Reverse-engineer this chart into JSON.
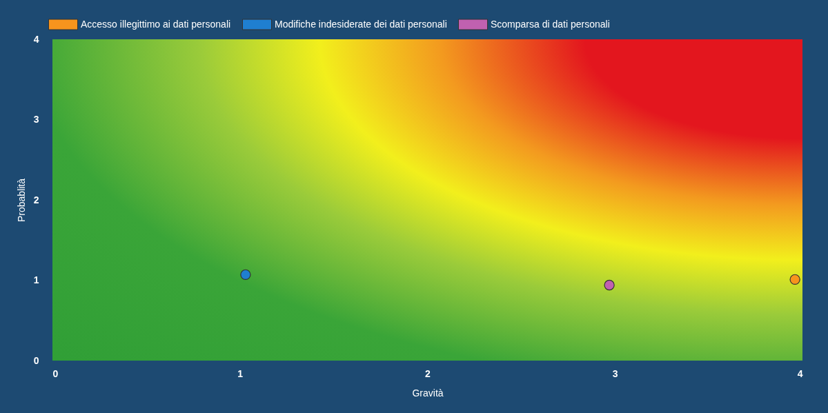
{
  "chart_data": {
    "type": "scatter",
    "xlabel": "Gravità",
    "ylabel": "Probablità",
    "xlim": [
      0,
      4
    ],
    "ylim": [
      0,
      4
    ],
    "xticks": [
      0,
      1,
      2,
      3,
      4
    ],
    "yticks": [
      0,
      1,
      2,
      3,
      4
    ],
    "grid": false,
    "legend": "top",
    "marker": "circle",
    "series": [
      {
        "name": "Accesso illegittimo ai dati personali",
        "color": "#f7941d",
        "x": [
          3.96
        ],
        "values": [
          1.01
        ]
      },
      {
        "name": "Modifiche indesiderate dei dati personali",
        "color": "#1f7fd0",
        "x": [
          1.03
        ],
        "values": [
          1.07
        ]
      },
      {
        "name": "Scomparsa di dati personali",
        "color": "#c061b0",
        "x": [
          2.97
        ],
        "values": [
          0.94
        ]
      }
    ]
  }
}
